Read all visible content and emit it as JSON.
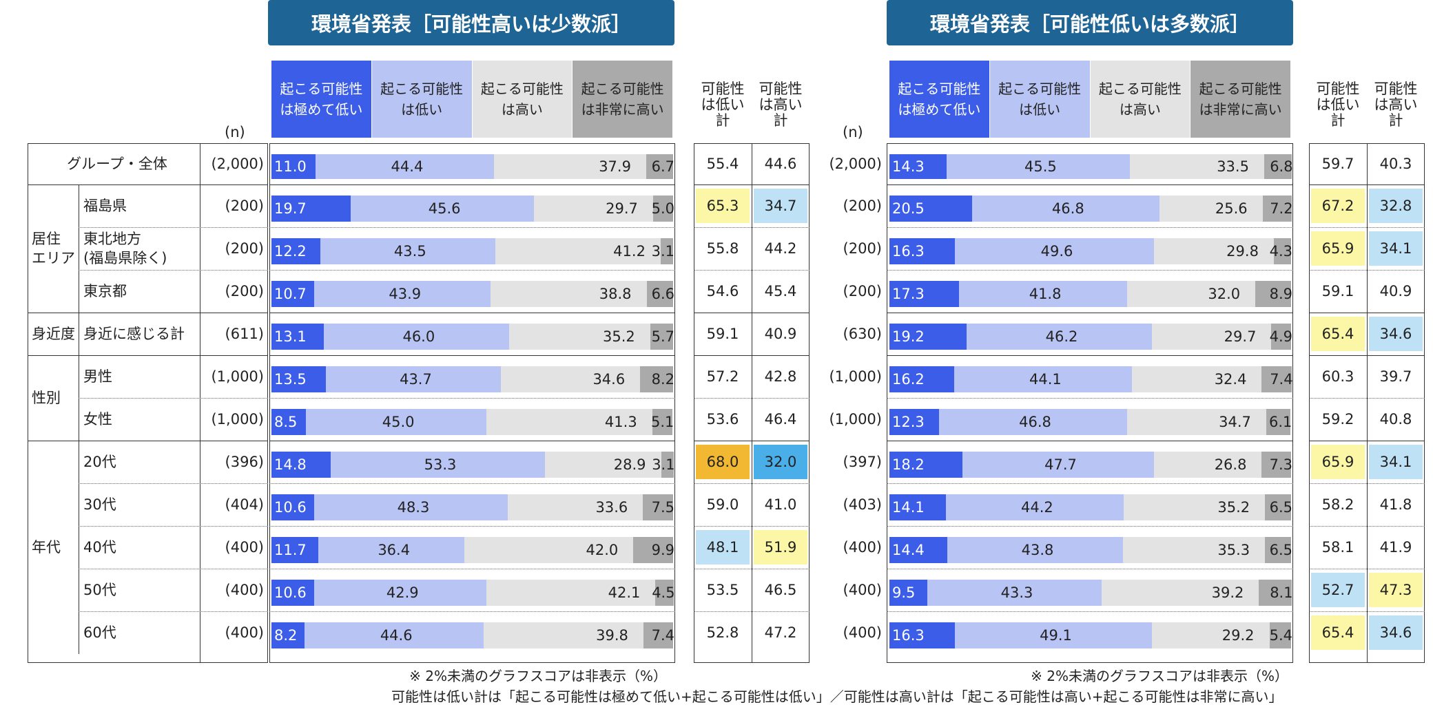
{
  "panels": [
    {
      "title": "環境省発表［可能性高いは少数派］",
      "n_header": "(n)",
      "legend": [
        {
          "label": "起こる可能性\nは極めて低い",
          "color": "#3b5de7",
          "text_color": "#ffffff"
        },
        {
          "label": "起こる可能性\nは低い",
          "color": "#b8c4f4",
          "text_color": "#222222"
        },
        {
          "label": "起こる可能性\nは高い",
          "color": "#e3e3e3",
          "text_color": "#222222"
        },
        {
          "label": "起こる可能性\nは非常に高い",
          "color": "#aaaaaa",
          "text_color": "#222222"
        }
      ],
      "sum_headers": [
        "可能性\nは低い\n計",
        "可能性\nは高い\n計"
      ],
      "footnote": "※ 2%未満のグラフスコアは非表示（%）"
    },
    {
      "title": "環境省発表［可能性低いは多数派］",
      "n_header": "(n)",
      "legend": [
        {
          "label": "起こる可能性\nは極めて低い",
          "color": "#3b5de7",
          "text_color": "#ffffff"
        },
        {
          "label": "起こる可能性\nは低い",
          "color": "#b8c4f4",
          "text_color": "#222222"
        },
        {
          "label": "起こる可能性\nは高い",
          "color": "#e3e3e3",
          "text_color": "#222222"
        },
        {
          "label": "起こる可能性\nは非常に高い",
          "color": "#aaaaaa",
          "text_color": "#222222"
        }
      ],
      "sum_headers": [
        "可能性\nは低い\n計",
        "可能性\nは高い\n計"
      ],
      "footnote": "※ 2%未満のグラフスコアは非表示（%）"
    }
  ],
  "groups": [
    {
      "label": "",
      "rows": [
        0
      ]
    },
    {
      "label": "居住\nエリア",
      "rows": [
        1,
        2,
        3
      ]
    },
    {
      "label": "身近度",
      "rows": [
        4
      ]
    },
    {
      "label": "性別",
      "rows": [
        5,
        6
      ]
    },
    {
      "label": "年代",
      "rows": [
        7,
        8,
        9,
        10,
        11
      ]
    }
  ],
  "row_labels": [
    "グループ・全体",
    "福島県",
    "東北地方\n(福島県除く)",
    "東京都",
    "身近に感じる計",
    "男性",
    "女性",
    "20代",
    "30代",
    "40代",
    "50代",
    "60代"
  ],
  "highlight_colors": {
    "yellow": "#fcf7a6",
    "blue": "#bfe1f5",
    "orange": "#f3b832",
    "strong_blue": "#4aaee8"
  },
  "chart_data": [
    {
      "type": "bar",
      "stacked": true,
      "orientation": "horizontal",
      "title": "環境省発表［可能性高いは少数派］",
      "categories": [
        "グループ・全体",
        "福島県",
        "東北地方(福島県除く)",
        "東京都",
        "身近に感じる計",
        "男性",
        "女性",
        "20代",
        "30代",
        "40代",
        "50代",
        "60代"
      ],
      "n": [
        "(2,000)",
        "(200)",
        "(200)",
        "(200)",
        "(611)",
        "(1,000)",
        "(1,000)",
        "(396)",
        "(404)",
        "(400)",
        "(400)",
        "(400)"
      ],
      "series": [
        {
          "name": "起こる可能性は極めて低い",
          "values": [
            11.0,
            19.7,
            12.2,
            10.7,
            13.1,
            13.5,
            8.5,
            14.8,
            10.6,
            11.7,
            10.6,
            8.2
          ]
        },
        {
          "name": "起こる可能性は低い",
          "values": [
            44.4,
            45.6,
            43.5,
            43.9,
            46.0,
            43.7,
            45.0,
            53.3,
            48.3,
            36.4,
            42.9,
            44.6
          ]
        },
        {
          "name": "起こる可能性は高い",
          "values": [
            37.9,
            29.7,
            41.2,
            38.8,
            35.2,
            34.6,
            41.3,
            28.9,
            33.6,
            42.0,
            42.1,
            39.8
          ]
        },
        {
          "name": "起こる可能性は非常に高い",
          "values": [
            6.7,
            5.0,
            3.1,
            6.6,
            5.7,
            8.2,
            5.1,
            3.1,
            7.5,
            9.9,
            4.5,
            7.4
          ]
        }
      ],
      "totals_low": [
        55.4,
        65.3,
        55.8,
        54.6,
        59.1,
        57.2,
        53.6,
        68.0,
        59.0,
        48.1,
        53.5,
        52.8
      ],
      "totals_high": [
        44.6,
        34.7,
        44.2,
        45.4,
        40.9,
        42.8,
        46.4,
        32.0,
        41.0,
        51.9,
        46.5,
        47.2
      ],
      "highlight_low": [
        "",
        "yellow",
        "",
        "",
        "",
        "",
        "",
        "orange",
        "",
        "blue",
        "",
        ""
      ],
      "highlight_high": [
        "",
        "blue",
        "",
        "",
        "",
        "",
        "",
        "strong_blue",
        "",
        "yellow",
        "",
        ""
      ],
      "xlim": [
        0,
        100
      ],
      "unit": "%"
    },
    {
      "type": "bar",
      "stacked": true,
      "orientation": "horizontal",
      "title": "環境省発表［可能性低いは多数派］",
      "categories": [
        "グループ・全体",
        "福島県",
        "東北地方(福島県除く)",
        "東京都",
        "身近に感じる計",
        "男性",
        "女性",
        "20代",
        "30代",
        "40代",
        "50代",
        "60代"
      ],
      "n": [
        "(2,000)",
        "(200)",
        "(200)",
        "(200)",
        "(630)",
        "(1,000)",
        "(1,000)",
        "(397)",
        "(403)",
        "(400)",
        "(400)",
        "(400)"
      ],
      "series": [
        {
          "name": "起こる可能性は極めて低い",
          "values": [
            14.3,
            20.5,
            16.3,
            17.3,
            19.2,
            16.2,
            12.3,
            18.2,
            14.1,
            14.4,
            9.5,
            16.3
          ]
        },
        {
          "name": "起こる可能性は低い",
          "values": [
            45.5,
            46.8,
            49.6,
            41.8,
            46.2,
            44.1,
            46.8,
            47.7,
            44.2,
            43.8,
            43.3,
            49.1
          ]
        },
        {
          "name": "起こる可能性は高い",
          "values": [
            33.5,
            25.6,
            29.8,
            32.0,
            29.7,
            32.4,
            34.7,
            26.8,
            35.2,
            35.3,
            39.2,
            29.2
          ]
        },
        {
          "name": "起こる可能性は非常に高い",
          "values": [
            6.8,
            7.2,
            4.3,
            8.9,
            4.9,
            7.4,
            6.1,
            7.3,
            6.5,
            6.5,
            8.1,
            5.4
          ]
        }
      ],
      "totals_low": [
        59.7,
        67.2,
        65.9,
        59.1,
        65.4,
        60.3,
        59.2,
        65.9,
        58.2,
        58.1,
        52.7,
        65.4
      ],
      "totals_high": [
        40.3,
        32.8,
        34.1,
        40.9,
        34.6,
        39.7,
        40.8,
        34.1,
        41.8,
        41.9,
        47.3,
        34.6
      ],
      "highlight_low": [
        "",
        "yellow",
        "yellow",
        "",
        "yellow",
        "",
        "",
        "yellow",
        "",
        "",
        "blue",
        "yellow"
      ],
      "highlight_high": [
        "",
        "blue",
        "blue",
        "",
        "blue",
        "",
        "",
        "blue",
        "",
        "",
        "yellow",
        "blue"
      ],
      "xlim": [
        0,
        100
      ],
      "unit": "%"
    }
  ],
  "bottom_note": "可能性は低い計は「起こる可能性は極めて低い+起こる可能性は低い」／可能性は高い計は「起こる可能性は高い+起こる可能性は非常に高い」"
}
